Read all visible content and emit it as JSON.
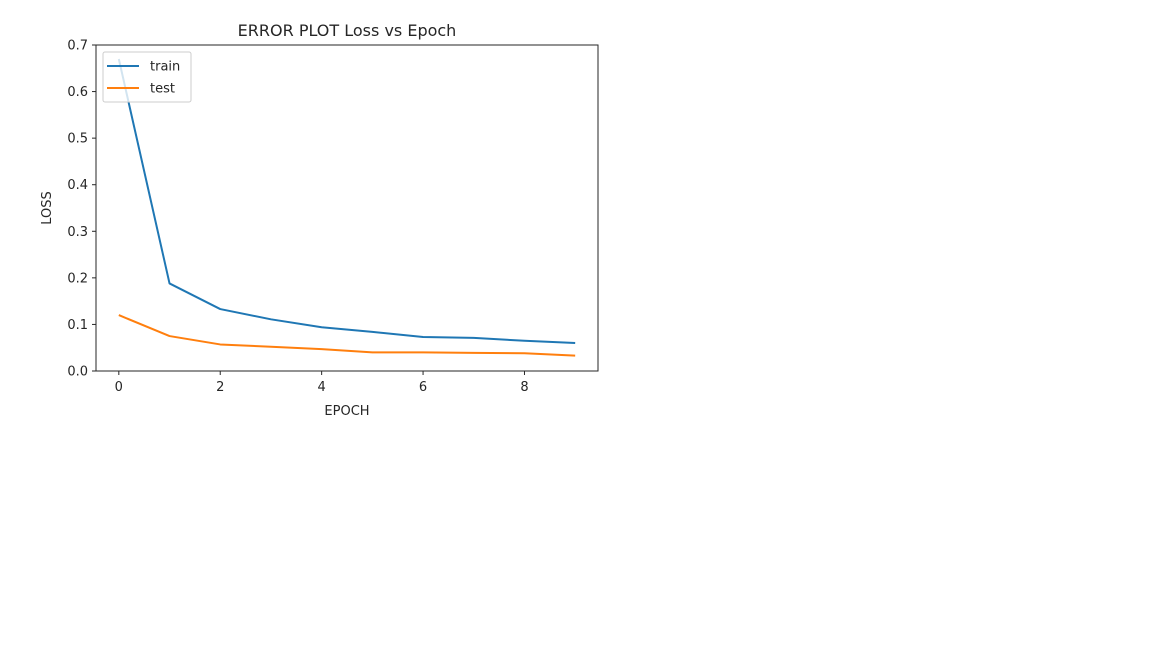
{
  "chart_data": {
    "type": "line",
    "title": "ERROR PLOT Loss vs Epoch",
    "xlabel": "EPOCH",
    "ylabel": "LOSS",
    "x": [
      0,
      1,
      2,
      3,
      4,
      5,
      6,
      7,
      8,
      9
    ],
    "series": [
      {
        "name": "train",
        "color": "#1f77b4",
        "values": [
          0.67,
          0.188,
          0.133,
          0.111,
          0.094,
          0.084,
          0.073,
          0.071,
          0.065,
          0.06
        ]
      },
      {
        "name": "test",
        "color": "#ff7f0e",
        "values": [
          0.12,
          0.075,
          0.057,
          0.052,
          0.047,
          0.04,
          0.04,
          0.039,
          0.038,
          0.033
        ]
      }
    ],
    "xlim": [
      -0.45,
      9.45
    ],
    "ylim": [
      0.0,
      0.7
    ],
    "xticks": [
      "0",
      "2",
      "4",
      "6",
      "8"
    ],
    "yticks": [
      "0.0",
      "0.1",
      "0.2",
      "0.3",
      "0.4",
      "0.5",
      "0.6",
      "0.7"
    ],
    "grid": false,
    "legend_position": "upper left"
  }
}
